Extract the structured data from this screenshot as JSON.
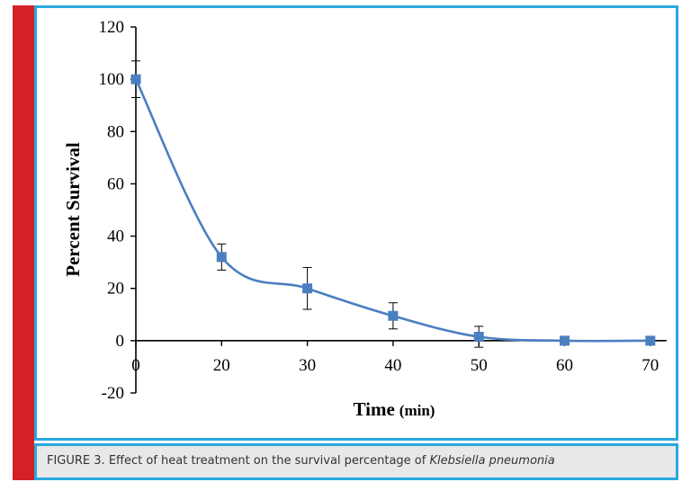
{
  "chart_data": {
    "type": "line",
    "title": "",
    "xlabel": "Time",
    "xlabel_unit": "(min)",
    "ylabel": "Percent Survival",
    "x_ticks": [
      0,
      20,
      30,
      40,
      50,
      60,
      70
    ],
    "y_ticks": [
      -20,
      0,
      20,
      40,
      60,
      80,
      100,
      120
    ],
    "ylim": [
      -20,
      120
    ],
    "grid": false,
    "series": [
      {
        "x": [
          0,
          20,
          30,
          40,
          50,
          60,
          70
        ],
        "y": [
          100,
          32,
          20,
          9.5,
          1.5,
          0,
          0
        ],
        "error": [
          7,
          5,
          8,
          5,
          4,
          0,
          0
        ]
      }
    ],
    "colors": {
      "line": "#4a7fc1",
      "marker": "#4a7fc1"
    }
  },
  "caption": {
    "prefix": "FIGURE 3. Effect of heat treatment on the survival percentage of ",
    "italic": "Klebsiella pneumonia"
  },
  "colors": {
    "border": "#29a8df",
    "side_bar": "#d42128",
    "caption_bg": "#e8e8e8"
  }
}
